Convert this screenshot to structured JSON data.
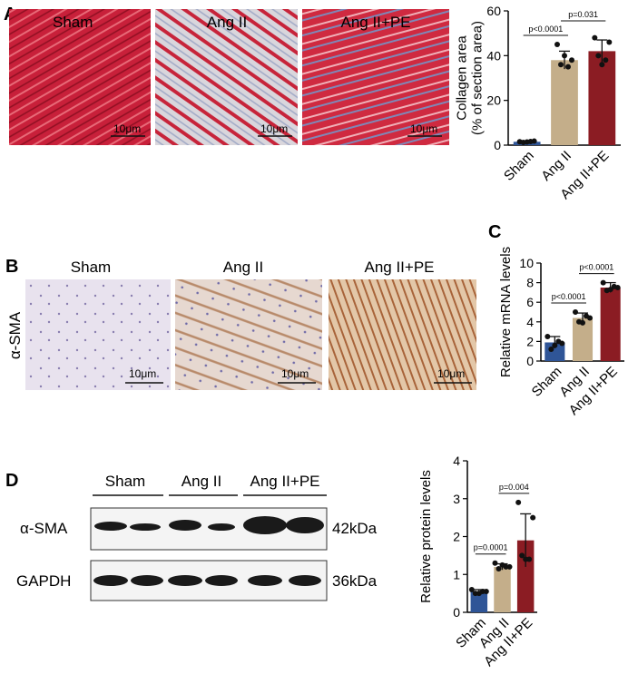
{
  "panels": {
    "a": {
      "letter": "A",
      "images": [
        "Sham",
        "Ang II",
        "Ang II+PE"
      ],
      "scale": [
        "10μm",
        "10μm",
        "10μm"
      ]
    },
    "b": {
      "letter": "B",
      "stain": "α-SMA",
      "images": [
        "Sham",
        "Ang II",
        "Ang II+PE"
      ],
      "scale": [
        "10μm",
        "10μm",
        "10μm"
      ]
    },
    "c": {
      "letter": "C"
    },
    "d": {
      "letter": "D",
      "groups": [
        "Sham",
        "Ang II",
        "Ang II+PE"
      ],
      "rows": [
        "α-SMA",
        "GAPDH"
      ],
      "sizes": [
        "42kDa",
        "36kDa"
      ]
    }
  },
  "chart_data": [
    {
      "type": "bar",
      "ylabel": [
        "Collagen area",
        "(% of section area)"
      ],
      "categories": [
        "Sham",
        "Ang II",
        "Ang II+PE"
      ],
      "values": [
        1.5,
        38,
        42
      ],
      "errors": [
        0.4,
        4,
        5
      ],
      "points": [
        [
          1.5,
          1.8,
          1.2,
          1.6,
          1.4
        ],
        [
          45,
          38,
          36,
          35,
          40
        ],
        [
          48,
          46,
          40,
          38,
          36
        ]
      ],
      "colors": [
        "#2f5597",
        "#c4ae8a",
        "#8b1c23"
      ],
      "ylim": [
        0,
        60
      ],
      "yticks": [
        0,
        20,
        40,
        60
      ],
      "annotations": [
        "p<0.0001",
        "p=0.031"
      ]
    },
    {
      "type": "bar",
      "ylabel": [
        "Relative mRNA levels"
      ],
      "categories": [
        "Sham",
        "Ang II",
        "Ang II+PE"
      ],
      "values": [
        1.9,
        4.4,
        7.5
      ],
      "errors": [
        0.6,
        0.5,
        0.5
      ],
      "points": [
        [
          2.5,
          1.8,
          1.2,
          2.0,
          1.6
        ],
        [
          5.0,
          4.4,
          4.0,
          4.6,
          3.9
        ],
        [
          8.0,
          7.5,
          7.2,
          7.6,
          7.3
        ]
      ],
      "colors": [
        "#2f5597",
        "#c4ae8a",
        "#8b1c23"
      ],
      "ylim": [
        0,
        10
      ],
      "yticks": [
        0,
        2,
        4,
        6,
        8,
        10
      ],
      "annotations": [
        "p<0.0001",
        "p<0.0001"
      ]
    },
    {
      "type": "bar",
      "ylabel": [
        "Relative protein levels"
      ],
      "categories": [
        "Sham",
        "Ang II",
        "Ang II+PE"
      ],
      "values": [
        0.55,
        1.2,
        1.9
      ],
      "errors": [
        0.05,
        0.08,
        0.7
      ],
      "points": [
        [
          0.6,
          0.55,
          0.5,
          0.55,
          0.5
        ],
        [
          1.3,
          1.2,
          1.15,
          1.2,
          1.25
        ],
        [
          2.9,
          2.5,
          1.5,
          1.4,
          1.4
        ]
      ],
      "colors": [
        "#2f5597",
        "#c4ae8a",
        "#8b1c23"
      ],
      "ylim": [
        0,
        4
      ],
      "yticks": [
        0,
        1,
        2,
        3,
        4
      ],
      "annotations": [
        "p=0.0001",
        "p=0.004"
      ]
    }
  ]
}
